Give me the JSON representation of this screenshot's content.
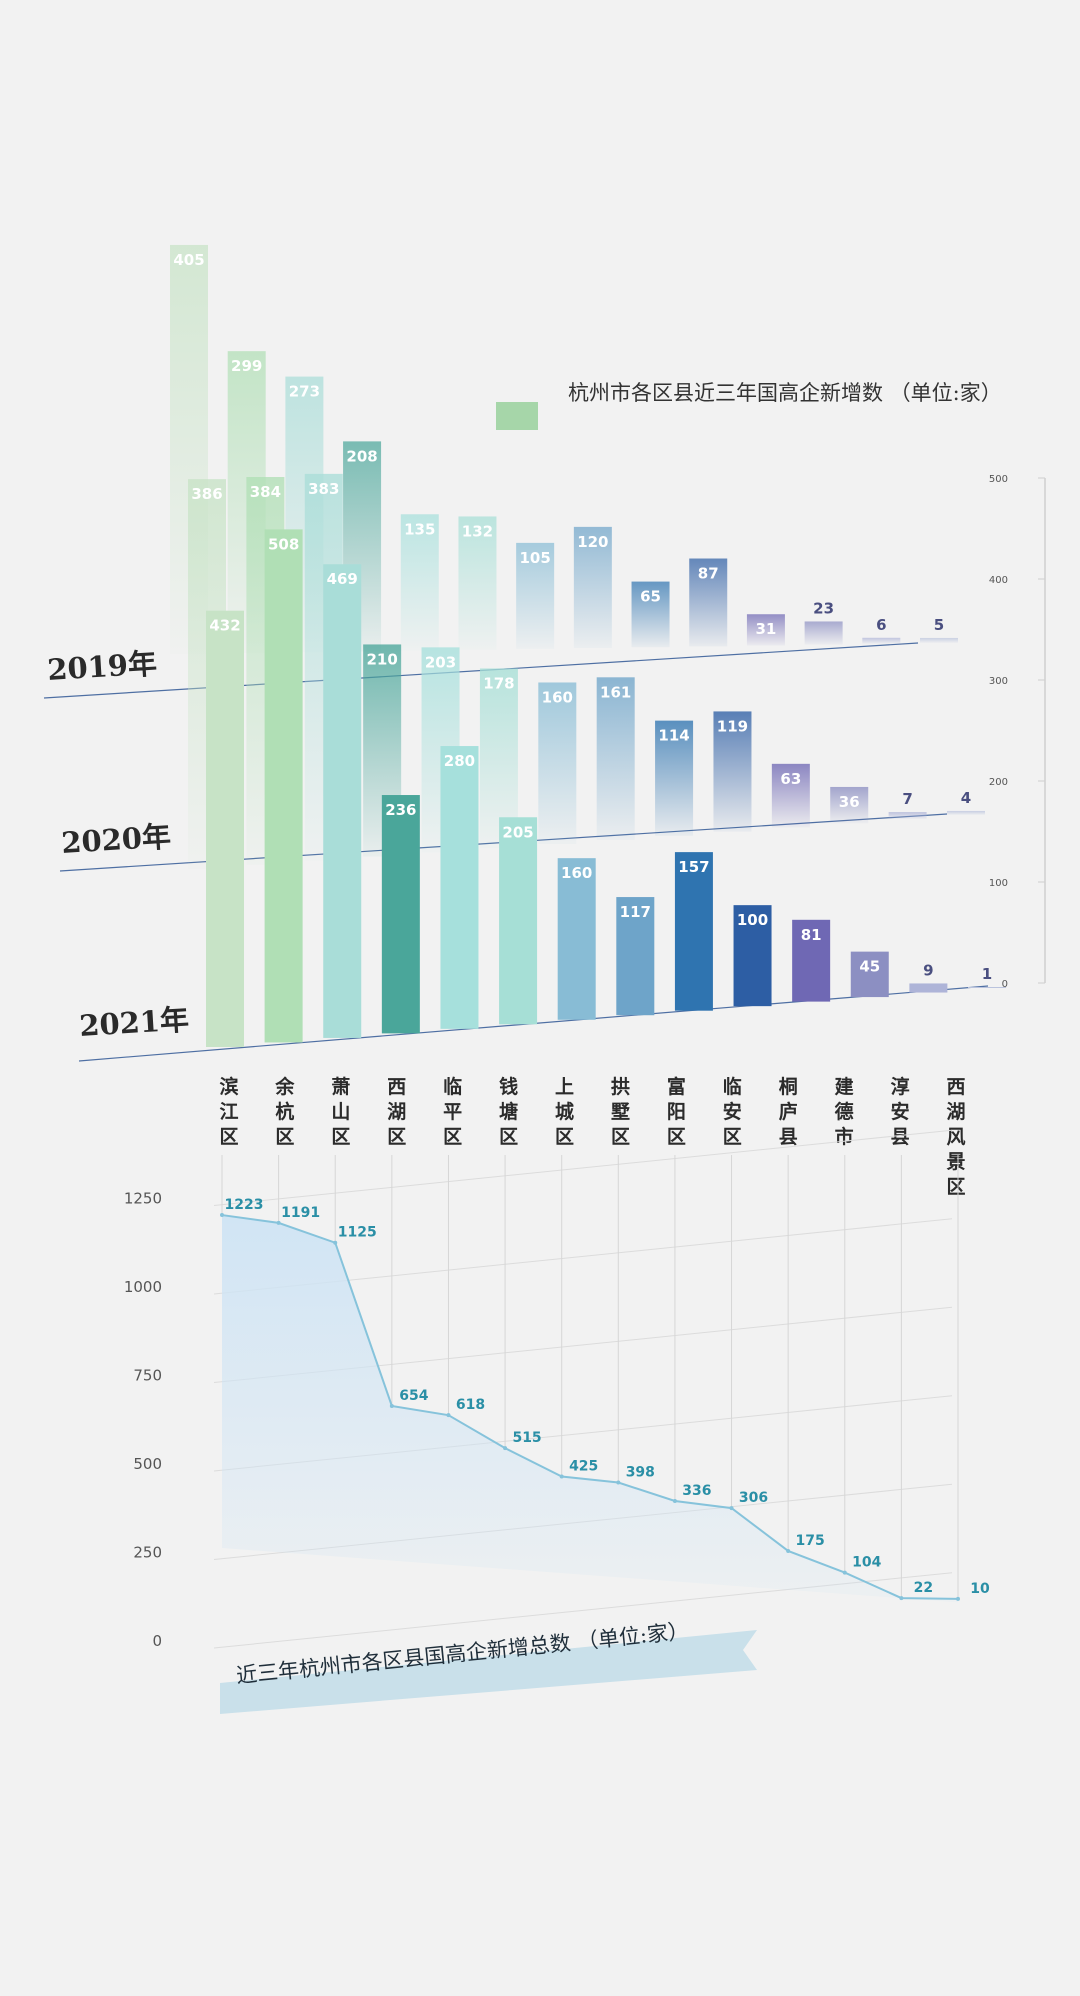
{
  "legend": {
    "title": "杭州市各区县近三年国高企新增数 （单位:家）",
    "swatch_color": "#a6d6a9"
  },
  "bottom_title": "近三年杭州市各区县国高企新增总数 （单位:家）",
  "districts": [
    "滨江区",
    "余杭区",
    "萧山区",
    "西湖区",
    "临平区",
    "钱塘区",
    "上城区",
    "拱墅区",
    "富阳区",
    "临安区",
    "桐庐县",
    "建德市",
    "淳安县",
    "西湖风景区"
  ],
  "chart_data": [
    {
      "type": "bar",
      "title": "杭州市各区县近三年国高企新增数 （单位:家）",
      "categories": [
        "滨江区",
        "余杭区",
        "萧山区",
        "西湖区",
        "临平区",
        "钱塘区",
        "上城区",
        "拱墅区",
        "富阳区",
        "临安区",
        "桐庐县",
        "建德市",
        "淳安县",
        "西湖风景区"
      ],
      "series": [
        {
          "name": "2019年",
          "values": [
            405,
            299,
            273,
            208,
            135,
            132,
            105,
            120,
            65,
            87,
            31,
            23,
            6,
            5
          ]
        },
        {
          "name": "2020年",
          "values": [
            386,
            384,
            383,
            210,
            203,
            178,
            160,
            161,
            114,
            119,
            63,
            36,
            7,
            4
          ]
        },
        {
          "name": "2021年",
          "values": [
            432,
            508,
            469,
            236,
            280,
            205,
            160,
            117,
            157,
            100,
            81,
            45,
            9,
            1
          ]
        }
      ],
      "yaxis_ticks": [
        "0",
        "100",
        "200",
        "300",
        "400",
        "500"
      ],
      "ylim": [
        0,
        500
      ]
    },
    {
      "type": "area",
      "title": "近三年杭州市各区县国高企新增总数 （单位:家）",
      "categories": [
        "滨江区",
        "余杭区",
        "萧山区",
        "西湖区",
        "临平区",
        "钱塘区",
        "上城区",
        "拱墅区",
        "富阳区",
        "临安区",
        "桐庐县",
        "建德市",
        "淳安县",
        "西湖风景区"
      ],
      "values": [
        1223,
        1191,
        1125,
        654,
        618,
        515,
        425,
        398,
        336,
        306,
        175,
        104,
        22,
        10
      ],
      "yaxis_ticks": [
        "0",
        "250",
        "500",
        "750",
        "1000",
        "1250"
      ],
      "ylim": [
        0,
        1250
      ]
    }
  ],
  "colors": {
    "2021": [
      "#c7e3c6",
      "#b0dfb5",
      "#a9ddd8",
      "#4aa69a",
      "#a6e0dc",
      "#a6dfd6",
      "#88bcd5",
      "#6ea4c9",
      "#2f74b0",
      "#2d5ea4",
      "#6f68b4",
      "#8c8fc2",
      "#aeb4d8",
      "#bac3dd"
    ],
    "line": "#86c3db",
    "area": "#cfe4f4",
    "value_text": "#2a8fa6"
  }
}
